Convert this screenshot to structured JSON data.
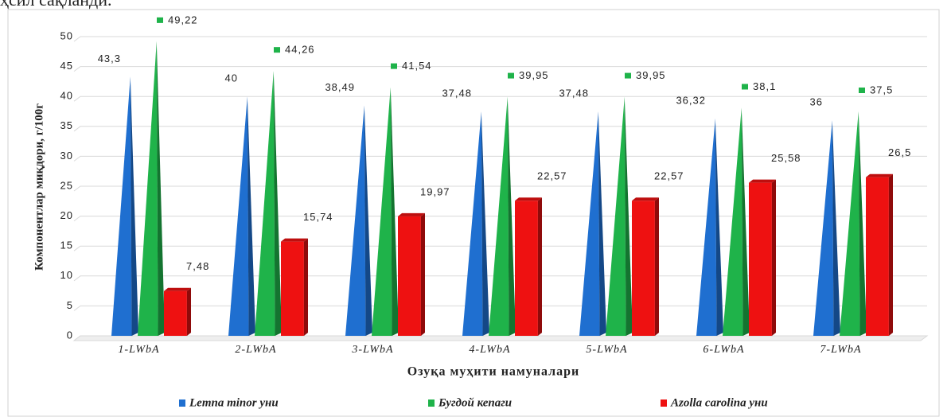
{
  "intro_text": "ҳсил сақланди.",
  "chart_data": {
    "type": "bar",
    "ylabel": "Компонентлар миқдори, г/100г",
    "xlabel": "Озуқа муҳити намуналари",
    "categories": [
      "1-LWbA",
      "2-LWbA",
      "3-LWbA",
      "4-LWbA",
      "5-LWbA",
      "6-LWbA",
      "7-LWbA"
    ],
    "series": [
      {
        "name": "Lemna minor уни",
        "color": "#1f6fd0",
        "values": [
          43.3,
          40,
          38.49,
          37.48,
          37.48,
          36.32,
          36
        ],
        "value_labels": [
          "43,3",
          "40",
          "38,49",
          "37,48",
          "37,48",
          "36,32",
          "36"
        ]
      },
      {
        "name": "Бугдой кепаги",
        "color": "#1fb34a",
        "values": [
          49.22,
          44.26,
          41.54,
          39.95,
          39.95,
          38.1,
          37.5
        ],
        "value_labels": [
          "49,22",
          "44,26",
          "41,54",
          "39,95",
          "39,95",
          "38,1",
          "37,5"
        ]
      },
      {
        "name": "Azolla carolina уни",
        "color": "#ee1111",
        "values": [
          7.48,
          15.74,
          19.97,
          22.57,
          22.57,
          25.58,
          26.5
        ],
        "value_labels": [
          "7,48",
          "15,74",
          "19,97",
          "22,57",
          "22,57",
          "25,58",
          "26,5"
        ]
      }
    ],
    "ylim": [
      0,
      50
    ],
    "yticks": [
      0,
      5,
      10,
      15,
      20,
      25,
      30,
      35,
      40,
      45,
      50
    ],
    "grid": true,
    "legend": "bottom"
  }
}
